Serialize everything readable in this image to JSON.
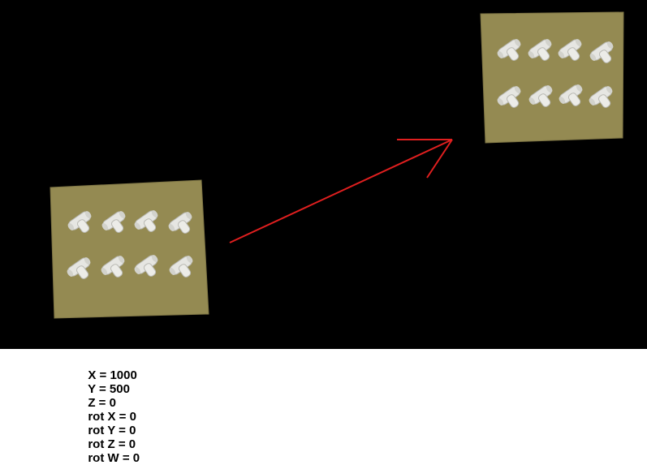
{
  "colors": {
    "background": "#000000",
    "board": "#948a52",
    "board_edge": "#7d7444",
    "fitting": "#e6e6e2",
    "fitting_shade": "#b9b9b3",
    "arrow": "#e01f1f",
    "caption_bg": "#ffffff",
    "caption_text": "#000000"
  },
  "boards": [
    {
      "name": "source-board",
      "rows": 2,
      "cols": 4
    },
    {
      "name": "target-board",
      "rows": 2,
      "cols": 4
    }
  ],
  "arrow": {
    "icon": "arrow-right-up-icon"
  },
  "pose": [
    {
      "key": "x",
      "text": "X = 1000"
    },
    {
      "key": "y",
      "text": "Y = 500"
    },
    {
      "key": "z",
      "text": "Z = 0"
    },
    {
      "key": "rot_x",
      "text": "rot X = 0"
    },
    {
      "key": "rot_y",
      "text": "rot Y = 0"
    },
    {
      "key": "rot_z",
      "text": "rot Z = 0"
    },
    {
      "key": "rot_w",
      "text": "rot W = 0"
    }
  ]
}
